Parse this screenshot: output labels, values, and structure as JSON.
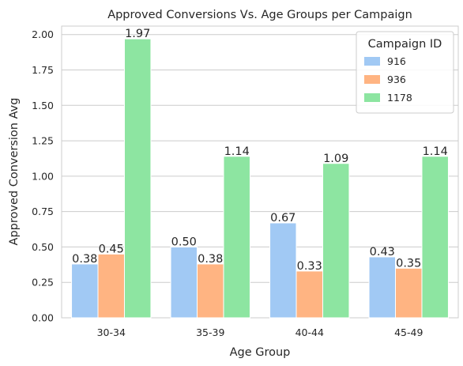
{
  "chart_data": {
    "type": "bar",
    "title": "Approved Conversions Vs. Age Groups per Campaign",
    "xlabel": "Age Group",
    "ylabel": "Approved Conversion Avg",
    "categories": [
      "30-34",
      "35-39",
      "40-44",
      "45-49"
    ],
    "series": [
      {
        "name": "916",
        "values": [
          0.38,
          0.5,
          0.67,
          0.43
        ],
        "labels": [
          "0.38",
          "0.50",
          "0.67",
          "0.43"
        ],
        "color": "#a1c9f4"
      },
      {
        "name": "936",
        "values": [
          0.45,
          0.38,
          0.33,
          0.35
        ],
        "labels": [
          "0.45",
          "0.38",
          "0.33",
          "0.35"
        ],
        "color": "#ffb482"
      },
      {
        "name": "1178",
        "values": [
          1.97,
          1.14,
          1.09,
          1.14
        ],
        "labels": [
          "1.97",
          "1.14",
          "1.09",
          "1.14"
        ],
        "color": "#8de5a1"
      }
    ],
    "ylim": [
      0,
      2.06
    ],
    "yticks": [
      "0.00",
      "0.25",
      "0.50",
      "0.75",
      "1.00",
      "1.25",
      "1.50",
      "1.75",
      "2.00"
    ],
    "grid": true,
    "legend": {
      "title": "Campaign ID",
      "position": "top-right"
    }
  }
}
